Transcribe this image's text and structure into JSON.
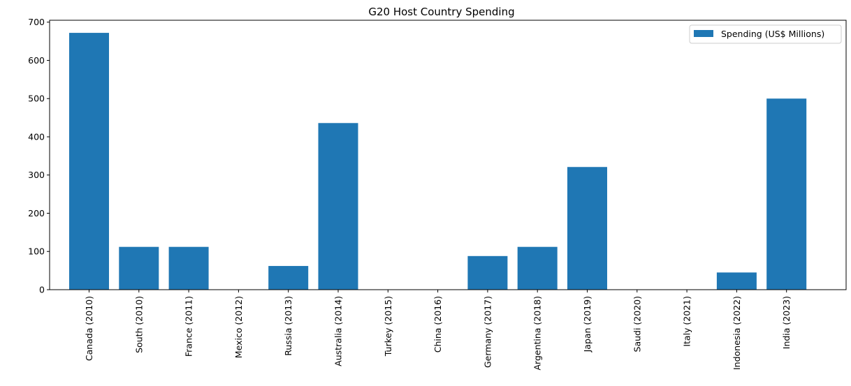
{
  "chart_data": {
    "type": "bar",
    "title": "G20 Host Country Spending",
    "xlabel": "",
    "ylabel": "",
    "categories": [
      "Canada (2010)",
      "South (2010)",
      "France (2011)",
      "Mexico (2012)",
      "Russia (2013)",
      "Australia (2014)",
      "Turkey (2015)",
      "China (2016)",
      "Germany (2017)",
      "Argentina (2018)",
      "Japan (2019)",
      "Saudi (2020)",
      "Italy (2021)",
      "Indonesia (2022)",
      "India (2023)"
    ],
    "series": [
      {
        "name": "Spending (US$ Millions)",
        "values": [
          672,
          112,
          112,
          0,
          62,
          436,
          0,
          0,
          88,
          112,
          321,
          0,
          0,
          45,
          500
        ],
        "color": "#1f77b4"
      }
    ],
    "ylim": [
      0,
      705
    ],
    "yticks": [
      0,
      100,
      200,
      300,
      400,
      500,
      600,
      700
    ],
    "grid": false,
    "legend_position": "top-right"
  }
}
